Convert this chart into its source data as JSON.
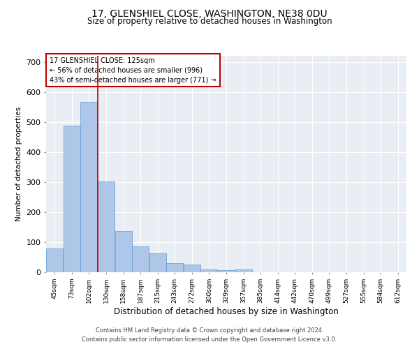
{
  "title_line1": "17, GLENSHIEL CLOSE, WASHINGTON, NE38 0DU",
  "title_line2": "Size of property relative to detached houses in Washington",
  "xlabel": "Distribution of detached houses by size in Washington",
  "ylabel": "Number of detached properties",
  "footer_line1": "Contains HM Land Registry data © Crown copyright and database right 2024.",
  "footer_line2": "Contains public sector information licensed under the Open Government Licence v3.0.",
  "annotation_line1": "17 GLENSHIEL CLOSE: 125sqm",
  "annotation_line2": "← 56% of detached houses are smaller (996)",
  "annotation_line3": "43% of semi-detached houses are larger (771) →",
  "categories": [
    "45sqm",
    "73sqm",
    "102sqm",
    "130sqm",
    "158sqm",
    "187sqm",
    "215sqm",
    "243sqm",
    "272sqm",
    "300sqm",
    "329sqm",
    "357sqm",
    "385sqm",
    "414sqm",
    "442sqm",
    "470sqm",
    "499sqm",
    "527sqm",
    "555sqm",
    "584sqm",
    "612sqm"
  ],
  "values": [
    80,
    488,
    567,
    303,
    137,
    85,
    62,
    31,
    26,
    10,
    8,
    10,
    0,
    0,
    0,
    0,
    0,
    0,
    0,
    0,
    0
  ],
  "bar_color": "#aec6e8",
  "bar_edge_color": "#5b9bd5",
  "vline_x_index": 2.5,
  "vline_color": "#c00000",
  "annotation_box_color": "#c00000",
  "background_color": "#e8eef4",
  "ylim": [
    0,
    720
  ],
  "yticks": [
    0,
    100,
    200,
    300,
    400,
    500,
    600,
    700
  ]
}
